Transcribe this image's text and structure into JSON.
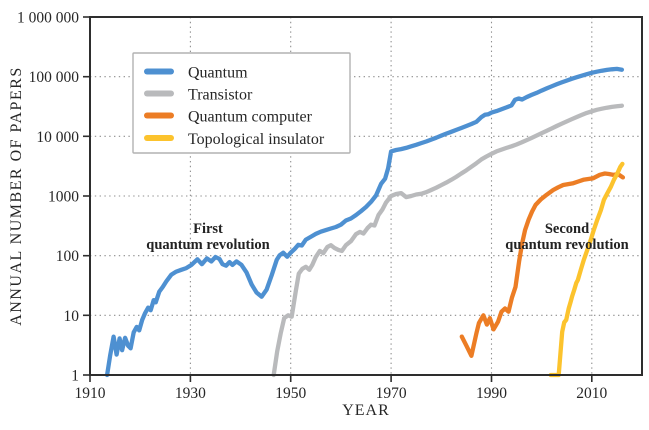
{
  "chart_data": {
    "type": "line",
    "title": "",
    "xlabel": "YEAR",
    "ylabel": "ANNUAL NUMBER OF PAPERS",
    "x_range": [
      1910,
      2020
    ],
    "y_range": [
      1,
      1000000
    ],
    "y_scale": "log",
    "grid": {
      "x_years": [
        1930,
        1950,
        1970,
        1990,
        2010
      ],
      "y_values": [
        10,
        100,
        1000,
        10000,
        100000
      ]
    },
    "x_ticks": [
      1910,
      1930,
      1950,
      1970,
      1990,
      2010
    ],
    "y_ticks": [
      1,
      10,
      100,
      1000,
      10000,
      100000,
      1000000
    ],
    "y_tick_labels": [
      "1",
      "10",
      "100",
      "1000",
      "10 000",
      "100 000",
      "1 000 000"
    ],
    "legend_position": "top-left",
    "annotations": [
      {
        "line1": "First",
        "line2": "quantum revolution"
      },
      {
        "line1": "Second",
        "line2": "quantum revolution"
      }
    ],
    "series": [
      {
        "name": "Quantum",
        "color": "#4e90d1",
        "points": [
          [
            1913.4,
            1
          ],
          [
            1914,
            2.1
          ],
          [
            1914.7,
            4.4
          ],
          [
            1915.3,
            2.2
          ],
          [
            1915.9,
            4.1
          ],
          [
            1916.4,
            2.6
          ],
          [
            1917,
            4.2
          ],
          [
            1917.6,
            3.1
          ],
          [
            1918.1,
            2.8
          ],
          [
            1918.7,
            5.2
          ],
          [
            1919.3,
            6.4
          ],
          [
            1919.8,
            5.6
          ],
          [
            1920.4,
            8.4
          ],
          [
            1921,
            11
          ],
          [
            1921.6,
            13.5
          ],
          [
            1922.1,
            12.2
          ],
          [
            1922.7,
            18
          ],
          [
            1923.1,
            16.5
          ],
          [
            1923.8,
            25
          ],
          [
            1924.5,
            30
          ],
          [
            1925.2,
            37
          ],
          [
            1926.2,
            48
          ],
          [
            1927.2,
            54
          ],
          [
            1928.2,
            58
          ],
          [
            1929.2,
            62
          ],
          [
            1930.2,
            70
          ],
          [
            1931.4,
            87
          ],
          [
            1932.3,
            72
          ],
          [
            1933.3,
            90
          ],
          [
            1934.2,
            80
          ],
          [
            1935,
            95
          ],
          [
            1935.8,
            88
          ],
          [
            1936.4,
            72
          ],
          [
            1937.1,
            68
          ],
          [
            1937.8,
            78
          ],
          [
            1938.4,
            70
          ],
          [
            1939.2,
            80
          ],
          [
            1940.2,
            70
          ],
          [
            1941.2,
            52
          ],
          [
            1942.2,
            33
          ],
          [
            1943.2,
            24
          ],
          [
            1944.2,
            20.5
          ],
          [
            1945.2,
            27
          ],
          [
            1946.2,
            47
          ],
          [
            1947.2,
            85
          ],
          [
            1947.8,
            102
          ],
          [
            1948.5,
            112
          ],
          [
            1949.3,
            96
          ],
          [
            1950,
            112
          ],
          [
            1950.8,
            130
          ],
          [
            1951.5,
            152
          ],
          [
            1952.2,
            148
          ],
          [
            1953,
            185
          ],
          [
            1954,
            207
          ],
          [
            1955,
            232
          ],
          [
            1956,
            252
          ],
          [
            1957,
            268
          ],
          [
            1958,
            285
          ],
          [
            1959,
            302
          ],
          [
            1960,
            330
          ],
          [
            1961,
            388
          ],
          [
            1962,
            420
          ],
          [
            1963,
            478
          ],
          [
            1964,
            556
          ],
          [
            1965,
            655
          ],
          [
            1966,
            795
          ],
          [
            1967,
            1020
          ],
          [
            1968,
            1600
          ],
          [
            1968.8,
            1950
          ],
          [
            1969.4,
            2900
          ],
          [
            1970,
            5600
          ],
          [
            1971,
            5900
          ],
          [
            1972,
            6100
          ],
          [
            1973,
            6400
          ],
          [
            1974,
            6800
          ],
          [
            1975,
            7200
          ],
          [
            1976,
            7700
          ],
          [
            1977,
            8200
          ],
          [
            1978,
            8800
          ],
          [
            1979,
            9500
          ],
          [
            1980,
            10300
          ],
          [
            1981,
            11100
          ],
          [
            1982,
            11900
          ],
          [
            1983,
            12800
          ],
          [
            1984,
            13800
          ],
          [
            1985,
            14900
          ],
          [
            1986,
            16100
          ],
          [
            1987,
            17500
          ],
          [
            1988,
            21000
          ],
          [
            1988.7,
            23000
          ],
          [
            1989.4,
            23500
          ],
          [
            1990,
            25000
          ],
          [
            1991,
            26500
          ],
          [
            1992,
            28500
          ],
          [
            1993,
            30500
          ],
          [
            1994,
            33000
          ],
          [
            1994.7,
            41000
          ],
          [
            1995.4,
            43000
          ],
          [
            1996.1,
            41500
          ],
          [
            1997,
            45500
          ],
          [
            1998,
            49500
          ],
          [
            1999,
            53500
          ],
          [
            2000,
            58500
          ],
          [
            2001,
            63500
          ],
          [
            2002,
            69000
          ],
          [
            2003,
            74500
          ],
          [
            2004,
            80000
          ],
          [
            2005,
            86000
          ],
          [
            2006,
            92000
          ],
          [
            2007,
            98000
          ],
          [
            2008,
            104000
          ],
          [
            2009,
            110000
          ],
          [
            2010,
            116000
          ],
          [
            2011,
            121000
          ],
          [
            2012,
            126000
          ],
          [
            2013,
            130000
          ],
          [
            2014,
            133000
          ],
          [
            2015,
            135000
          ],
          [
            2016,
            131000
          ]
        ]
      },
      {
        "name": "Transistor",
        "color": "#b9babc",
        "points": [
          [
            1946.6,
            1
          ],
          [
            1947.3,
            2.5
          ],
          [
            1948,
            5
          ],
          [
            1948.7,
            9
          ],
          [
            1949.5,
            10
          ],
          [
            1950.2,
            9.5
          ],
          [
            1951,
            25
          ],
          [
            1951.6,
            50
          ],
          [
            1952.3,
            60
          ],
          [
            1953,
            65
          ],
          [
            1953.7,
            58
          ],
          [
            1954.3,
            70
          ],
          [
            1955,
            95
          ],
          [
            1955.8,
            120
          ],
          [
            1956.5,
            110
          ],
          [
            1957.3,
            140
          ],
          [
            1958,
            150
          ],
          [
            1958.7,
            135
          ],
          [
            1959.5,
            125
          ],
          [
            1960.2,
            120
          ],
          [
            1961,
            150
          ],
          [
            1962,
            175
          ],
          [
            1963,
            230
          ],
          [
            1963.8,
            250
          ],
          [
            1964.5,
            235
          ],
          [
            1965.3,
            290
          ],
          [
            1966,
            330
          ],
          [
            1966.7,
            320
          ],
          [
            1967.5,
            480
          ],
          [
            1968.3,
            600
          ],
          [
            1969,
            780
          ],
          [
            1970,
            1000
          ],
          [
            1971,
            1080
          ],
          [
            1972,
            1120
          ],
          [
            1973,
            960
          ],
          [
            1974,
            1000
          ],
          [
            1975,
            1060
          ],
          [
            1976,
            1090
          ],
          [
            1977,
            1160
          ],
          [
            1978,
            1260
          ],
          [
            1979,
            1380
          ],
          [
            1980,
            1520
          ],
          [
            1981,
            1680
          ],
          [
            1982,
            1870
          ],
          [
            1983,
            2100
          ],
          [
            1984,
            2380
          ],
          [
            1985,
            2700
          ],
          [
            1986,
            3080
          ],
          [
            1987,
            3540
          ],
          [
            1988,
            4100
          ],
          [
            1989,
            4600
          ],
          [
            1990,
            5100
          ],
          [
            1991,
            5600
          ],
          [
            1992,
            6000
          ],
          [
            1993,
            6400
          ],
          [
            1994,
            6800
          ],
          [
            1995,
            7300
          ],
          [
            1996,
            7900
          ],
          [
            1997,
            8600
          ],
          [
            1998,
            9400
          ],
          [
            1999,
            10300
          ],
          [
            2000,
            11300
          ],
          [
            2001,
            12400
          ],
          [
            2002,
            13600
          ],
          [
            2003,
            14900
          ],
          [
            2004,
            16300
          ],
          [
            2005,
            17800
          ],
          [
            2006,
            19400
          ],
          [
            2007,
            21100
          ],
          [
            2008,
            22900
          ],
          [
            2009,
            24700
          ],
          [
            2010,
            26300
          ],
          [
            2011,
            27800
          ],
          [
            2012,
            29100
          ],
          [
            2013,
            30200
          ],
          [
            2014,
            31100
          ],
          [
            2015,
            31900
          ],
          [
            2016,
            32600
          ]
        ]
      },
      {
        "name": "Quantum computer",
        "color": "#ec7d25",
        "points": [
          [
            1984.1,
            4.4
          ],
          [
            1985,
            3.1
          ],
          [
            1986,
            2.1
          ],
          [
            1987,
            5
          ],
          [
            1987.5,
            7.4
          ],
          [
            1988.4,
            10
          ],
          [
            1989.1,
            7
          ],
          [
            1989.7,
            9
          ],
          [
            1990.4,
            5.8
          ],
          [
            1991.3,
            7.8
          ],
          [
            1992,
            11.5
          ],
          [
            1992.7,
            13
          ],
          [
            1993.4,
            11.5
          ],
          [
            1994.1,
            20
          ],
          [
            1994.8,
            30
          ],
          [
            1995.5,
            80
          ],
          [
            1996.1,
            160
          ],
          [
            1996.7,
            270
          ],
          [
            1997.4,
            400
          ],
          [
            1998.1,
            550
          ],
          [
            1998.8,
            710
          ],
          [
            1999.8,
            870
          ],
          [
            2001,
            1050
          ],
          [
            2002.3,
            1260
          ],
          [
            2003.3,
            1400
          ],
          [
            2004.3,
            1530
          ],
          [
            2005.3,
            1580
          ],
          [
            2006.3,
            1640
          ],
          [
            2007.3,
            1750
          ],
          [
            2008.3,
            1870
          ],
          [
            2009.3,
            1930
          ],
          [
            2010.3,
            1990
          ],
          [
            2011.6,
            2270
          ],
          [
            2012.6,
            2380
          ],
          [
            2013.4,
            2340
          ],
          [
            2014.3,
            2260
          ],
          [
            2015.2,
            2330
          ],
          [
            2016.2,
            2050
          ]
        ]
      },
      {
        "name": "Topological insulator",
        "color": "#fcc32d",
        "points": [
          [
            2001.8,
            1
          ],
          [
            2003.4,
            1
          ],
          [
            2003.8,
            2.6
          ],
          [
            2004.1,
            5.3
          ],
          [
            2004.5,
            7.6
          ],
          [
            2004.9,
            8.4
          ],
          [
            2005.4,
            13
          ],
          [
            2005.8,
            17
          ],
          [
            2006.1,
            21
          ],
          [
            2006.5,
            27
          ],
          [
            2006.9,
            35
          ],
          [
            2007.2,
            39
          ],
          [
            2007.8,
            58
          ],
          [
            2008.4,
            85
          ],
          [
            2009.1,
            125
          ],
          [
            2009.8,
            185
          ],
          [
            2010.4,
            270
          ],
          [
            2011.1,
            400
          ],
          [
            2011.8,
            580
          ],
          [
            2012.4,
            860
          ],
          [
            2013.1,
            1120
          ],
          [
            2013.8,
            1430
          ],
          [
            2014.4,
            1870
          ],
          [
            2015.1,
            2400
          ],
          [
            2015.7,
            3100
          ],
          [
            2016.1,
            3450
          ]
        ]
      }
    ]
  }
}
